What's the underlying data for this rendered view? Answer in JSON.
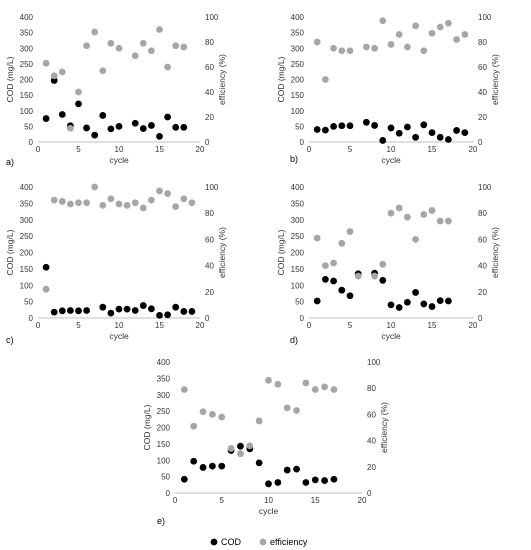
{
  "colors": {
    "cod": "#000000",
    "efficiency": "#a6a6a6",
    "axis": "#bfbfbf"
  },
  "legend": {
    "items": [
      "COD",
      "efficiency"
    ],
    "placement": "bottom-center"
  },
  "chart_data": [
    {
      "type": "scatter",
      "panel": "a)",
      "xlabel": "cycle",
      "ylabel": "COD (mg/L)",
      "y2label": "efficiency (%)",
      "xlim": [
        0,
        20
      ],
      "ylim": [
        0,
        400
      ],
      "y2lim": [
        0,
        100
      ],
      "xticks": [
        0,
        5,
        10,
        15,
        20
      ],
      "yticks": [
        0,
        50,
        100,
        150,
        200,
        250,
        300,
        350,
        400
      ],
      "y2ticks": [
        0,
        20,
        40,
        60,
        80,
        100
      ],
      "series": [
        {
          "name": "COD",
          "axis": "left",
          "points": [
            [
              1,
              75
            ],
            [
              2,
              197
            ],
            [
              3,
              88
            ],
            [
              4,
              52
            ],
            [
              5,
              122
            ],
            [
              6,
              45
            ],
            [
              7,
              22
            ],
            [
              8,
              85
            ],
            [
              9,
              42
            ],
            [
              10,
              50
            ],
            [
              12,
              60
            ],
            [
              13,
              43
            ],
            [
              14,
              53
            ],
            [
              15,
              18
            ],
            [
              16,
              80
            ],
            [
              17,
              47
            ],
            [
              18,
              47
            ]
          ]
        },
        {
          "name": "efficiency",
          "axis": "right",
          "points": [
            [
              1,
              63
            ],
            [
              2,
              53
            ],
            [
              3,
              56
            ],
            [
              4,
              11
            ],
            [
              5,
              40
            ],
            [
              6,
              77
            ],
            [
              7,
              88
            ],
            [
              8,
              57
            ],
            [
              9,
              79
            ],
            [
              10,
              75
            ],
            [
              12,
              69
            ],
            [
              13,
              79
            ],
            [
              14,
              73
            ],
            [
              15,
              90
            ],
            [
              16,
              60
            ],
            [
              17,
              77
            ],
            [
              18,
              76
            ]
          ]
        }
      ]
    },
    {
      "type": "scatter",
      "panel": "b)",
      "xlabel": "cycle",
      "ylabel": "COD (mg/L)",
      "y2label": "efficiency (%)",
      "xlim": [
        0,
        20
      ],
      "ylim": [
        0,
        400
      ],
      "y2lim": [
        0,
        100
      ],
      "xticks": [
        0,
        5,
        10,
        15,
        20
      ],
      "yticks": [
        0,
        50,
        100,
        150,
        200,
        250,
        300,
        350,
        400
      ],
      "y2ticks": [
        0,
        20,
        40,
        60,
        80,
        100
      ],
      "series": [
        {
          "name": "COD",
          "axis": "left",
          "points": [
            [
              1,
              40
            ],
            [
              2,
              38
            ],
            [
              3,
              50
            ],
            [
              4,
              52
            ],
            [
              5,
              52
            ],
            [
              7,
              63
            ],
            [
              8,
              53
            ],
            [
              9,
              5
            ],
            [
              10,
              45
            ],
            [
              11,
              28
            ],
            [
              12,
              48
            ],
            [
              13,
              15
            ],
            [
              14,
              55
            ],
            [
              15,
              30
            ],
            [
              16,
              15
            ],
            [
              17,
              8
            ],
            [
              18,
              37
            ],
            [
              19,
              30
            ]
          ]
        },
        {
          "name": "efficiency",
          "axis": "right",
          "points": [
            [
              1,
              80
            ],
            [
              2,
              50
            ],
            [
              3,
              75
            ],
            [
              4,
              73
            ],
            [
              5,
              73
            ],
            [
              7,
              76
            ],
            [
              8,
              75
            ],
            [
              9,
              97
            ],
            [
              10,
              78
            ],
            [
              11,
              86
            ],
            [
              12,
              76
            ],
            [
              13,
              93
            ],
            [
              14,
              73
            ],
            [
              15,
              87
            ],
            [
              16,
              92
            ],
            [
              17,
              95
            ],
            [
              18,
              82
            ],
            [
              19,
              86
            ]
          ]
        }
      ]
    },
    {
      "type": "scatter",
      "panel": "c)",
      "xlabel": "cycle",
      "ylabel": "COD (mg/L)",
      "y2label": "efficiency (%)",
      "xlim": [
        0,
        20
      ],
      "ylim": [
        0,
        400
      ],
      "y2lim": [
        0,
        100
      ],
      "xticks": [
        0,
        5,
        10,
        15,
        20
      ],
      "yticks": [
        0,
        50,
        100,
        150,
        200,
        250,
        300,
        350,
        400
      ],
      "y2ticks": [
        0,
        20,
        40,
        60,
        80,
        100
      ],
      "series": [
        {
          "name": "COD",
          "axis": "left",
          "points": [
            [
              1,
              155
            ],
            [
              2,
              18
            ],
            [
              3,
              22
            ],
            [
              4,
              23
            ],
            [
              5,
              22
            ],
            [
              6,
              23
            ],
            [
              8,
              33
            ],
            [
              9,
              15
            ],
            [
              10,
              27
            ],
            [
              11,
              27
            ],
            [
              12,
              23
            ],
            [
              13,
              38
            ],
            [
              14,
              28
            ],
            [
              15,
              8
            ],
            [
              16,
              10
            ],
            [
              17,
              33
            ],
            [
              18,
              20
            ],
            [
              19,
              20
            ]
          ]
        },
        {
          "name": "efficiency",
          "axis": "right",
          "points": [
            [
              1,
              22
            ],
            [
              2,
              90
            ],
            [
              3,
              89
            ],
            [
              4,
              87
            ],
            [
              5,
              88
            ],
            [
              6,
              88
            ],
            [
              7,
              100
            ],
            [
              8,
              86
            ],
            [
              9,
              91
            ],
            [
              10,
              87
            ],
            [
              11,
              86
            ],
            [
              12,
              88
            ],
            [
              13,
              84
            ],
            [
              14,
              90
            ],
            [
              15,
              97
            ],
            [
              16,
              95
            ],
            [
              17,
              85
            ],
            [
              18,
              91
            ],
            [
              19,
              88
            ]
          ]
        }
      ]
    },
    {
      "type": "scatter",
      "panel": "d)",
      "xlabel": "cycle",
      "ylabel": "COD (mg/L)",
      "y2label": "efficiency (%)",
      "xlim": [
        0,
        20
      ],
      "ylim": [
        0,
        400
      ],
      "y2lim": [
        0,
        100
      ],
      "xticks": [
        0,
        5,
        10,
        15,
        20
      ],
      "yticks": [
        0,
        50,
        100,
        150,
        200,
        250,
        300,
        350,
        400
      ],
      "y2ticks": [
        0,
        20,
        40,
        60,
        80,
        100
      ],
      "series": [
        {
          "name": "COD",
          "axis": "left",
          "points": [
            [
              1,
              52
            ],
            [
              2,
              118
            ],
            [
              3,
              113
            ],
            [
              4,
              85
            ],
            [
              5,
              68
            ],
            [
              6,
              135
            ],
            [
              8,
              137
            ],
            [
              9,
              115
            ],
            [
              10,
              40
            ],
            [
              11,
              32
            ],
            [
              12,
              48
            ],
            [
              13,
              78
            ],
            [
              14,
              43
            ],
            [
              15,
              35
            ],
            [
              16,
              53
            ],
            [
              17,
              52
            ]
          ]
        },
        {
          "name": "efficiency",
          "axis": "right",
          "points": [
            [
              1,
              61
            ],
            [
              2,
              40
            ],
            [
              3,
              42
            ],
            [
              4,
              57
            ],
            [
              5,
              66
            ],
            [
              6,
              32
            ],
            [
              8,
              32
            ],
            [
              9,
              41
            ],
            [
              10,
              80
            ],
            [
              11,
              84
            ],
            [
              12,
              77
            ],
            [
              13,
              60
            ],
            [
              14,
              79
            ],
            [
              15,
              82
            ],
            [
              16,
              74
            ],
            [
              17,
              74
            ]
          ]
        }
      ]
    },
    {
      "type": "scatter",
      "panel": "e)",
      "xlabel": "cycle",
      "ylabel": "COD (mg/L)",
      "y2label": "efficiency (%)",
      "xlim": [
        0,
        20
      ],
      "ylim": [
        0,
        400
      ],
      "y2lim": [
        0,
        100
      ],
      "xticks": [
        0,
        5,
        10,
        15,
        20
      ],
      "yticks": [
        0,
        50,
        100,
        150,
        200,
        250,
        300,
        350,
        400
      ],
      "y2ticks": [
        0,
        20,
        40,
        60,
        80,
        100
      ],
      "series": [
        {
          "name": "COD",
          "axis": "left",
          "points": [
            [
              1,
              42
            ],
            [
              2,
              97
            ],
            [
              3,
              78
            ],
            [
              4,
              82
            ],
            [
              5,
              82
            ],
            [
              6,
              130
            ],
            [
              7,
              143
            ],
            [
              8,
              135
            ],
            [
              9,
              92
            ],
            [
              10,
              28
            ],
            [
              11,
              32
            ],
            [
              12,
              70
            ],
            [
              13,
              73
            ],
            [
              14,
              32
            ],
            [
              15,
              40
            ],
            [
              16,
              38
            ],
            [
              17,
              42
            ]
          ]
        },
        {
          "name": "efficiency",
          "axis": "right",
          "points": [
            [
              1,
              79
            ],
            [
              2,
              51
            ],
            [
              3,
              62
            ],
            [
              4,
              60
            ],
            [
              5,
              58
            ],
            [
              6,
              34
            ],
            [
              7,
              30
            ],
            [
              8,
              36
            ],
            [
              9,
              55
            ],
            [
              10,
              86
            ],
            [
              11,
              83
            ],
            [
              12,
              65
            ],
            [
              13,
              63
            ],
            [
              14,
              84
            ],
            [
              15,
              79
            ],
            [
              16,
              81
            ],
            [
              17,
              79
            ]
          ]
        }
      ]
    }
  ]
}
